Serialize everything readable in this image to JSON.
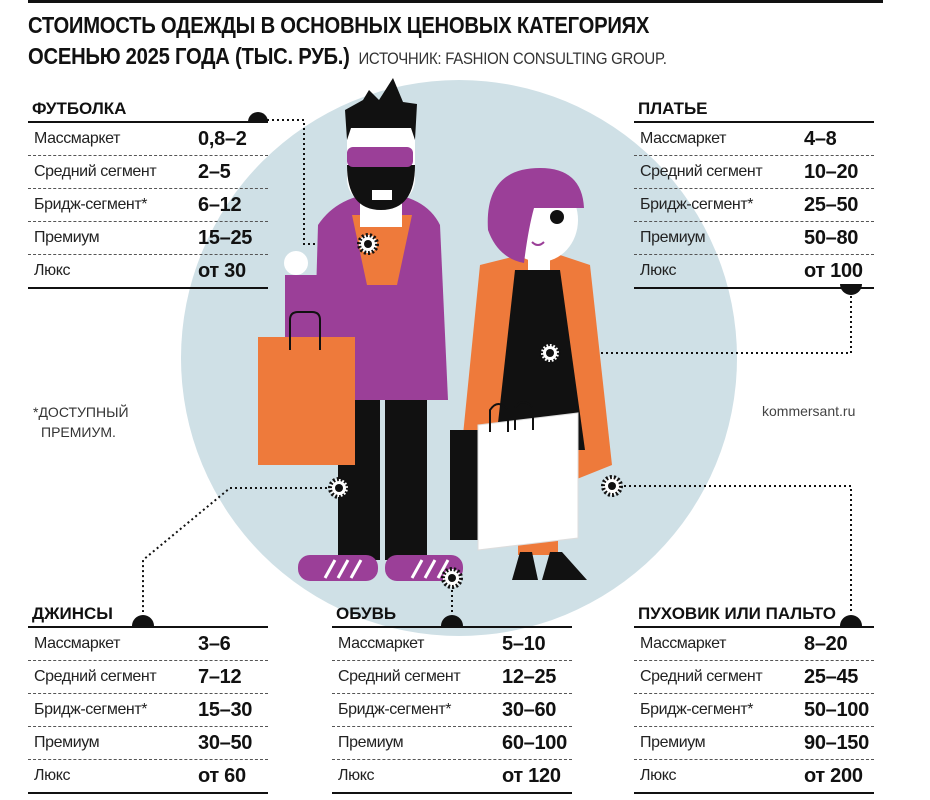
{
  "header": {
    "title_line1": "СТОИМОСТЬ ОДЕЖДЫ В ОСНОВНЫХ ЦЕНОВЫХ КАТЕГОРИЯХ",
    "title_line2": "ОСЕНЬЮ 2025 ГОДА (ТЫС. РУБ.)",
    "source": "ИСТОЧНИК: FASHION CONSULTING GROUP."
  },
  "colors": {
    "circle": "#cfe0e6",
    "purple": "#9b3f98",
    "orange": "#ee7a3b",
    "black": "#111111"
  },
  "tables": [
    {
      "title": "ФУТБОЛКА",
      "rows": [
        {
          "label": "Массмаркет",
          "value": "0,8–2"
        },
        {
          "label": "Средний сегмент",
          "value": "2–5"
        },
        {
          "label": "Бридж-сегмент*",
          "value": "6–12"
        },
        {
          "label": "Премиум",
          "value": "15–25"
        },
        {
          "label": "Люкс",
          "value": "от 30"
        }
      ]
    },
    {
      "title": "ПЛАТЬЕ",
      "rows": [
        {
          "label": "Массмаркет",
          "value": "4–8"
        },
        {
          "label": "Средний сегмент",
          "value": "10–20"
        },
        {
          "label": "Бридж-сегмент*",
          "value": "25–50"
        },
        {
          "label": "Премиум",
          "value": "50–80"
        },
        {
          "label": "Люкс",
          "value": "от 100"
        }
      ]
    },
    {
      "title": "ДЖИНСЫ",
      "rows": [
        {
          "label": "Массмаркет",
          "value": "3–6"
        },
        {
          "label": "Средний сегмент",
          "value": "7–12"
        },
        {
          "label": "Бридж-сегмент*",
          "value": "15–30"
        },
        {
          "label": "Премиум",
          "value": "30–50"
        },
        {
          "label": "Люкс",
          "value": "от 60"
        }
      ]
    },
    {
      "title": "ОБУВЬ",
      "rows": [
        {
          "label": "Массмаркет",
          "value": "5–10"
        },
        {
          "label": "Средний сегмент",
          "value": "12–25"
        },
        {
          "label": "Бридж-сегмент*",
          "value": "30–60"
        },
        {
          "label": "Премиум",
          "value": "60–100"
        },
        {
          "label": "Люкс",
          "value": "от 120"
        }
      ]
    },
    {
      "title": "ПУХОВИК ИЛИ ПАЛЬТО",
      "rows": [
        {
          "label": "Массмаркет",
          "value": "8–20"
        },
        {
          "label": "Средний сегмент",
          "value": "25–45"
        },
        {
          "label": "Бридж-сегмент*",
          "value": "50–100"
        },
        {
          "label": "Премиум",
          "value": "90–150"
        },
        {
          "label": "Люкс",
          "value": "от 200"
        }
      ]
    }
  ],
  "footnote": {
    "line1": "*ДОСТУПНЫЙ",
    "line2": "ПРЕМИУМ."
  },
  "credit": "kommersant.ru"
}
